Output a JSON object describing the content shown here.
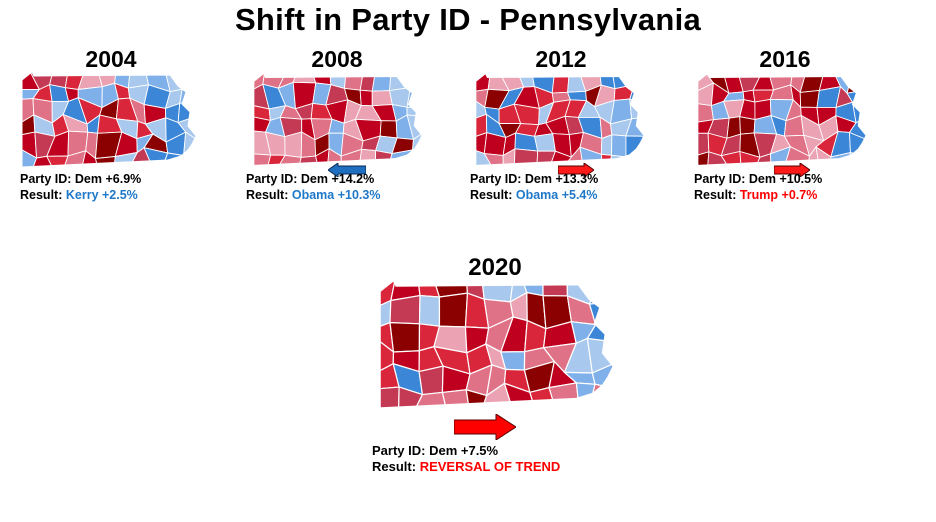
{
  "title": "Shift in Party ID - Pennsylvania",
  "colors": {
    "dem_text": "#1f78c8",
    "rep_text": "#ff0000",
    "palette": [
      "#8b0000",
      "#c0001f",
      "#d9263b",
      "#c43a55",
      "#e07287",
      "#eba2b3",
      "#a8c8ee",
      "#7fb0ea",
      "#3c86d8"
    ]
  },
  "panels": [
    {
      "year": "2004",
      "party_id_label": "Party ID: Dem",
      "party_id_value": "+6.9%",
      "result_label": "Result:",
      "result_value": "Kerry +2.5%",
      "result_party": "dem",
      "arrow": "none"
    },
    {
      "year": "2008",
      "party_id_label": "Party ID: Dem",
      "party_id_value": "+14.2%",
      "result_label": "Result:",
      "result_value": "Obama +10.3%",
      "result_party": "dem",
      "arrow": "left-blue"
    },
    {
      "year": "2012",
      "party_id_label": "Party ID: Dem",
      "party_id_value": "+13.3%",
      "result_label": "Result:",
      "result_value": "Obama +5.4%",
      "result_party": "dem",
      "arrow": "right-red"
    },
    {
      "year": "2016",
      "party_id_label": "Party ID: Dem",
      "party_id_value": "+10.5%",
      "result_label": "Result:",
      "result_value": "Trump +0.7%",
      "result_party": "rep",
      "arrow": "right-red"
    },
    {
      "year": "2020",
      "party_id_label": "Party ID: Dem",
      "party_id_value": "+7.5%",
      "result_label": "Result:",
      "result_value": "REVERSAL OF TREND",
      "result_party": "rep",
      "arrow": "right-red-large"
    }
  ]
}
